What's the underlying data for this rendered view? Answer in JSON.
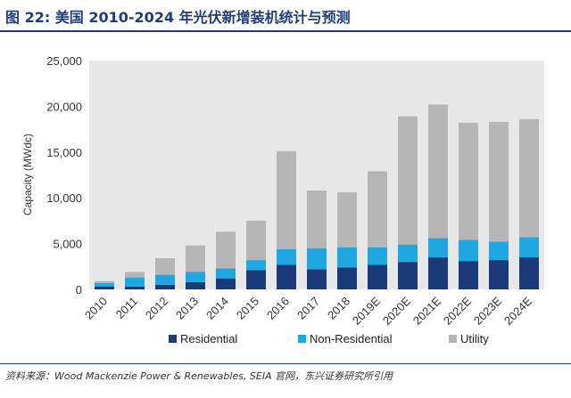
{
  "title": "图 22: 美国 2010-2024 年光伏新增装机统计与预测",
  "source": "资料来源：Wood Mackenzie Power & Renewables, SEIA 官网，东兴证券研究所引用",
  "colors": {
    "residential": "#1b3a78",
    "non_residential": "#1ea7e1",
    "utility": "#b5b5b5",
    "plot_bg": "#e7e7e7",
    "title": "#1f3d7a"
  },
  "chart_data": {
    "type": "bar",
    "stacked": true,
    "categories": [
      "2010",
      "2011",
      "2012",
      "2013",
      "2014",
      "2015",
      "2016",
      "2017",
      "2018",
      "2019E",
      "2020E",
      "2021E",
      "2022E",
      "2023E",
      "2024E"
    ],
    "series": [
      {
        "name": "Residential",
        "values": [
          300,
          300,
          500,
          800,
          1200,
          2100,
          2700,
          2200,
          2400,
          2700,
          3000,
          3500,
          3100,
          3200,
          3500
        ]
      },
      {
        "name": "Non-Residential",
        "values": [
          400,
          1000,
          1100,
          1100,
          1100,
          1100,
          1700,
          2300,
          2200,
          1900,
          1900,
          2100,
          2300,
          2000,
          2200
        ]
      },
      {
        "name": "Utility",
        "values": [
          200,
          600,
          1800,
          2900,
          4000,
          4300,
          10700,
          6300,
          6000,
          8300,
          14000,
          14600,
          12800,
          13100,
          12900
        ]
      }
    ],
    "ylabel": "Capacity (MWdc)",
    "xlabel": "",
    "ylim": [
      0,
      25000
    ],
    "yticks": [
      "0",
      "5,000",
      "10,000",
      "15,000",
      "20,000",
      "25,000"
    ],
    "ytick_values": [
      0,
      5000,
      10000,
      15000,
      20000,
      25000
    ],
    "legend_position": "bottom",
    "grid": false
  }
}
